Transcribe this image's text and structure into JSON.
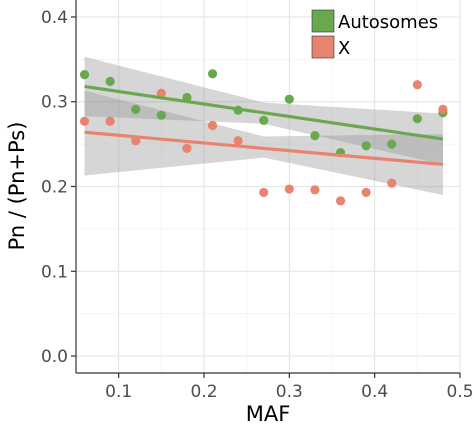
{
  "chart_data": {
    "type": "scatter",
    "xlabel": "MAF",
    "ylabel": "Pn / (Pn+Ps)",
    "xlim": [
      0.05,
      0.5
    ],
    "ylim": [
      -0.02,
      0.42
    ],
    "x_ticks": [
      0.1,
      0.2,
      0.3,
      0.4,
      0.5
    ],
    "x_tick_labels": [
      "0.1",
      "0.2",
      "0.3",
      "0.4",
      "0.5"
    ],
    "y_ticks": [
      0.0,
      0.1,
      0.2,
      0.3,
      0.4
    ],
    "y_tick_labels": [
      "0.0",
      "0.1",
      "0.2",
      "0.3",
      "0.4"
    ],
    "grid": true,
    "legend_position": "top-right",
    "series": [
      {
        "name": "Autosomes",
        "color": "#6aa84f",
        "points": [
          [
            0.06,
            0.332
          ],
          [
            0.09,
            0.324
          ],
          [
            0.12,
            0.291
          ],
          [
            0.15,
            0.284
          ],
          [
            0.18,
            0.305
          ],
          [
            0.21,
            0.333
          ],
          [
            0.24,
            0.29
          ],
          [
            0.27,
            0.278
          ],
          [
            0.3,
            0.303
          ],
          [
            0.33,
            0.26
          ],
          [
            0.36,
            0.24
          ],
          [
            0.39,
            0.248
          ],
          [
            0.42,
            0.25
          ],
          [
            0.45,
            0.28
          ],
          [
            0.48,
            0.287
          ]
        ],
        "fit": {
          "x": [
            0.06,
            0.48
          ],
          "y": [
            0.318,
            0.256
          ]
        },
        "band": {
          "x": [
            0.06,
            0.27,
            0.48
          ],
          "lower": [
            0.283,
            0.274,
            0.226
          ],
          "upper": [
            0.353,
            0.299,
            0.286
          ]
        }
      },
      {
        "name": "X",
        "color": "#e8836f",
        "points": [
          [
            0.06,
            0.277
          ],
          [
            0.09,
            0.277
          ],
          [
            0.12,
            0.254
          ],
          [
            0.15,
            0.31
          ],
          [
            0.18,
            0.245
          ],
          [
            0.21,
            0.272
          ],
          [
            0.24,
            0.254
          ],
          [
            0.27,
            0.193
          ],
          [
            0.3,
            0.197
          ],
          [
            0.33,
            0.196
          ],
          [
            0.36,
            0.183
          ],
          [
            0.39,
            0.193
          ],
          [
            0.42,
            0.204
          ],
          [
            0.45,
            0.32
          ],
          [
            0.48,
            0.291
          ]
        ],
        "fit": {
          "x": [
            0.06,
            0.48
          ],
          "y": [
            0.264,
            0.226
          ]
        },
        "band": {
          "x": [
            0.06,
            0.27,
            0.48
          ],
          "lower": [
            0.213,
            0.234,
            0.19
          ],
          "upper": [
            0.313,
            0.259,
            0.262
          ]
        }
      }
    ]
  }
}
